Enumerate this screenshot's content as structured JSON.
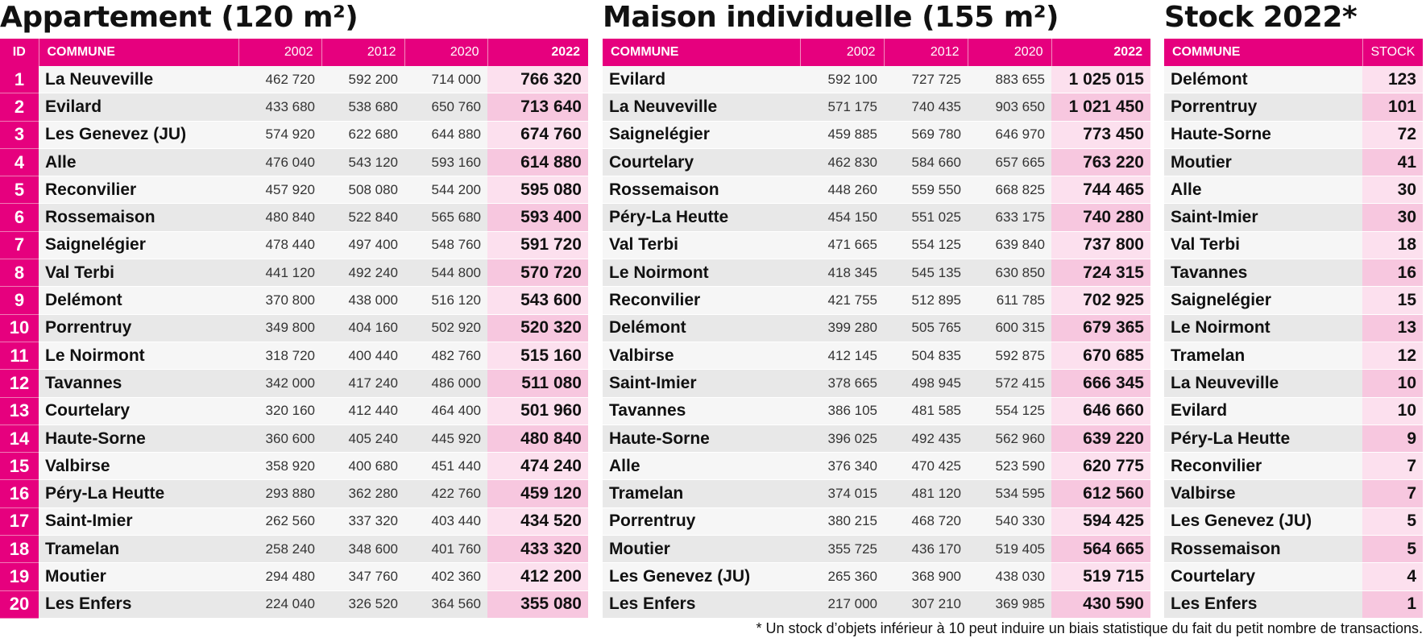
{
  "appartement": {
    "title": "Appartement (120 m²)",
    "headers": {
      "id": "ID",
      "commune": "COMMUNE",
      "y2002": "2002",
      "y2012": "2012",
      "y2020": "2020",
      "y2022": "2022"
    },
    "rows": [
      {
        "id": "1",
        "commune": "La Neuveville",
        "y2002": "462 720",
        "y2012": "592 200",
        "y2020": "714 000",
        "y2022": "766 320"
      },
      {
        "id": "2",
        "commune": "Evilard",
        "y2002": "433 680",
        "y2012": "538 680",
        "y2020": "650 760",
        "y2022": "713 640"
      },
      {
        "id": "3",
        "commune": "Les Genevez (JU)",
        "y2002": "574 920",
        "y2012": "622 680",
        "y2020": "644 880",
        "y2022": "674 760"
      },
      {
        "id": "4",
        "commune": "Alle",
        "y2002": "476 040",
        "y2012": "543 120",
        "y2020": "593 160",
        "y2022": "614 880"
      },
      {
        "id": "5",
        "commune": "Reconvilier",
        "y2002": "457 920",
        "y2012": "508 080",
        "y2020": "544 200",
        "y2022": "595 080"
      },
      {
        "id": "6",
        "commune": "Rossemaison",
        "y2002": "480 840",
        "y2012": "522 840",
        "y2020": "565 680",
        "y2022": "593 400"
      },
      {
        "id": "7",
        "commune": "Saignelégier",
        "y2002": "478 440",
        "y2012": "497 400",
        "y2020": "548 760",
        "y2022": "591 720"
      },
      {
        "id": "8",
        "commune": "Val Terbi",
        "y2002": "441 120",
        "y2012": "492 240",
        "y2020": "544 800",
        "y2022": "570 720"
      },
      {
        "id": "9",
        "commune": "Delémont",
        "y2002": "370 800",
        "y2012": "438 000",
        "y2020": "516 120",
        "y2022": "543 600"
      },
      {
        "id": "10",
        "commune": "Porrentruy",
        "y2002": "349 800",
        "y2012": "404 160",
        "y2020": "502 920",
        "y2022": "520 320"
      },
      {
        "id": "11",
        "commune": "Le Noirmont",
        "y2002": "318 720",
        "y2012": "400 440",
        "y2020": "482 760",
        "y2022": "515 160"
      },
      {
        "id": "12",
        "commune": "Tavannes",
        "y2002": "342 000",
        "y2012": "417 240",
        "y2020": "486 000",
        "y2022": "511 080"
      },
      {
        "id": "13",
        "commune": "Courtelary",
        "y2002": "320 160",
        "y2012": "412 440",
        "y2020": "464 400",
        "y2022": "501 960"
      },
      {
        "id": "14",
        "commune": "Haute-Sorne",
        "y2002": "360 600",
        "y2012": "405 240",
        "y2020": "445 920",
        "y2022": "480 840"
      },
      {
        "id": "15",
        "commune": "Valbirse",
        "y2002": "358 920",
        "y2012": "400 680",
        "y2020": "451 440",
        "y2022": "474 240"
      },
      {
        "id": "16",
        "commune": "Péry-La Heutte",
        "y2002": "293 880",
        "y2012": "362 280",
        "y2020": "422 760",
        "y2022": "459 120"
      },
      {
        "id": "17",
        "commune": "Saint-Imier",
        "y2002": "262 560",
        "y2012": "337 320",
        "y2020": "403 440",
        "y2022": "434 520"
      },
      {
        "id": "18",
        "commune": "Tramelan",
        "y2002": "258 240",
        "y2012": "348 600",
        "y2020": "401 760",
        "y2022": "433 320"
      },
      {
        "id": "19",
        "commune": "Moutier",
        "y2002": "294 480",
        "y2012": "347 760",
        "y2020": "402 360",
        "y2022": "412 200"
      },
      {
        "id": "20",
        "commune": "Les Enfers",
        "y2002": "224 040",
        "y2012": "326 520",
        "y2020": "364 560",
        "y2022": "355 080"
      }
    ]
  },
  "maison": {
    "title": "Maison individuelle (155 m²)",
    "headers": {
      "commune": "COMMUNE",
      "y2002": "2002",
      "y2012": "2012",
      "y2020": "2020",
      "y2022": "2022"
    },
    "rows": [
      {
        "commune": "Evilard",
        "y2002": "592 100",
        "y2012": "727 725",
        "y2020": "883 655",
        "y2022": "1 025 015"
      },
      {
        "commune": "La Neuveville",
        "y2002": "571 175",
        "y2012": "740 435",
        "y2020": "903 650",
        "y2022": "1 021 450"
      },
      {
        "commune": "Saignelégier",
        "y2002": "459 885",
        "y2012": "569 780",
        "y2020": "646 970",
        "y2022": "773 450"
      },
      {
        "commune": "Courtelary",
        "y2002": "462 830",
        "y2012": "584 660",
        "y2020": "657 665",
        "y2022": "763 220"
      },
      {
        "commune": "Rossemaison",
        "y2002": "448 260",
        "y2012": "559 550",
        "y2020": "668 825",
        "y2022": "744 465"
      },
      {
        "commune": "Péry-La Heutte",
        "y2002": "454 150",
        "y2012": "551 025",
        "y2020": "633 175",
        "y2022": "740 280"
      },
      {
        "commune": "Val Terbi",
        "y2002": "471 665",
        "y2012": "554 125",
        "y2020": "639 840",
        "y2022": "737 800"
      },
      {
        "commune": "Le Noirmont",
        "y2002": "418 345",
        "y2012": "545 135",
        "y2020": "630 850",
        "y2022": "724 315"
      },
      {
        "commune": "Reconvilier",
        "y2002": "421 755",
        "y2012": "512 895",
        "y2020": "611 785",
        "y2022": "702 925"
      },
      {
        "commune": "Delémont",
        "y2002": "399 280",
        "y2012": "505 765",
        "y2020": "600 315",
        "y2022": "679 365"
      },
      {
        "commune": "Valbirse",
        "y2002": "412 145",
        "y2012": "504 835",
        "y2020": "592 875",
        "y2022": "670 685"
      },
      {
        "commune": "Saint-Imier",
        "y2002": "378 665",
        "y2012": "498 945",
        "y2020": "572 415",
        "y2022": "666 345"
      },
      {
        "commune": "Tavannes",
        "y2002": "386 105",
        "y2012": "481 585",
        "y2020": "554 125",
        "y2022": "646 660"
      },
      {
        "commune": "Haute-Sorne",
        "y2002": "396 025",
        "y2012": "492 435",
        "y2020": "562 960",
        "y2022": "639 220"
      },
      {
        "commune": "Alle",
        "y2002": "376 340",
        "y2012": "470 425",
        "y2020": "523 590",
        "y2022": "620 775"
      },
      {
        "commune": "Tramelan",
        "y2002": "374 015",
        "y2012": "481 120",
        "y2020": "534 595",
        "y2022": "612 560"
      },
      {
        "commune": "Porrentruy",
        "y2002": "380 215",
        "y2012": "468 720",
        "y2020": "540 330",
        "y2022": "594 425"
      },
      {
        "commune": "Moutier",
        "y2002": "355 725",
        "y2012": "436 170",
        "y2020": "519 405",
        "y2022": "564 665"
      },
      {
        "commune": "Les Genevez (JU)",
        "y2002": "265 360",
        "y2012": "368 900",
        "y2020": "438 030",
        "y2022": "519 715"
      },
      {
        "commune": "Les Enfers",
        "y2002": "217 000",
        "y2012": "307 210",
        "y2020": "369 985",
        "y2022": "430 590"
      }
    ]
  },
  "stock": {
    "title": "Stock 2022*",
    "headers": {
      "commune": "COMMUNE",
      "stock": "STOCK"
    },
    "rows": [
      {
        "commune": "Delémont",
        "stock": "123"
      },
      {
        "commune": "Porrentruy",
        "stock": "101"
      },
      {
        "commune": "Haute-Sorne",
        "stock": "72"
      },
      {
        "commune": "Moutier",
        "stock": "41"
      },
      {
        "commune": "Alle",
        "stock": "30"
      },
      {
        "commune": "Saint-Imier",
        "stock": "30"
      },
      {
        "commune": "Val Terbi",
        "stock": "18"
      },
      {
        "commune": "Tavannes",
        "stock": "16"
      },
      {
        "commune": "Saignelégier",
        "stock": "15"
      },
      {
        "commune": "Le Noirmont",
        "stock": "13"
      },
      {
        "commune": "Tramelan",
        "stock": "12"
      },
      {
        "commune": "La Neuveville",
        "stock": "10"
      },
      {
        "commune": "Evilard",
        "stock": "10"
      },
      {
        "commune": "Péry-La Heutte",
        "stock": "9"
      },
      {
        "commune": "Reconvilier",
        "stock": "7"
      },
      {
        "commune": "Valbirse",
        "stock": "7"
      },
      {
        "commune": "Les Genevez (JU)",
        "stock": "5"
      },
      {
        "commune": "Rossemaison",
        "stock": "5"
      },
      {
        "commune": "Courtelary",
        "stock": "4"
      },
      {
        "commune": "Les Enfers",
        "stock": "1"
      }
    ]
  },
  "footnote": "* Un stock d’objets inférieur à 10 peut induire un biais statistique du fait du petit nombre de transactions.",
  "colors": {
    "accent": "#e6007e",
    "highlight_light": "#fce0ee",
    "highlight_dark": "#f7c7df"
  }
}
